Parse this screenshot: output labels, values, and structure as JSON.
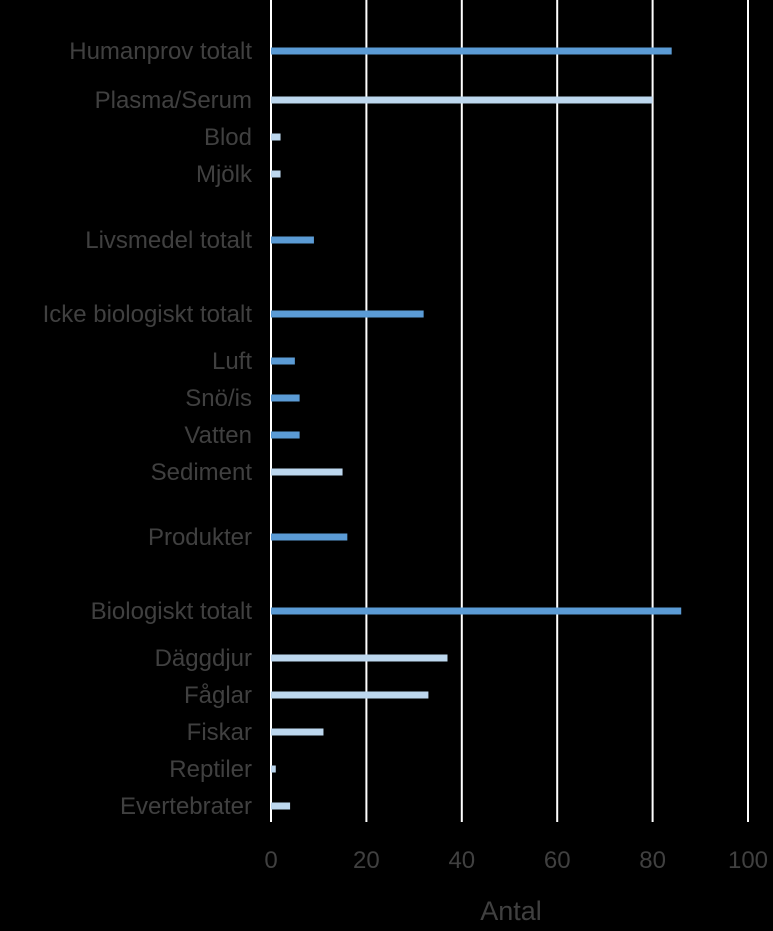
{
  "chart_data": {
    "type": "bar",
    "orientation": "horizontal",
    "xlabel": "Antal",
    "ylabel": "",
    "xlim": [
      0,
      100
    ],
    "xticks": [
      0,
      20,
      40,
      60,
      80,
      100
    ],
    "grid": "vertical",
    "legend": "none",
    "colors": {
      "background": "#000000",
      "grid": "#ffffff",
      "text": "#404040",
      "total": "#5b9bd5",
      "sub": "#bdd7ee"
    },
    "categories": [
      {
        "label": "Humanprov totalt",
        "value": 84,
        "kind": "total"
      },
      {
        "label": "Plasma/Serum",
        "value": 80,
        "kind": "sub"
      },
      {
        "label": "Blod",
        "value": 2,
        "kind": "sub"
      },
      {
        "label": "Mjölk",
        "value": 2,
        "kind": "sub"
      },
      {
        "label": "Livsmedel totalt",
        "value": 9,
        "kind": "total"
      },
      {
        "label": "Icke biologiskt totalt",
        "value": 32,
        "kind": "total"
      },
      {
        "label": "Luft",
        "value": 5,
        "kind": "total"
      },
      {
        "label": "Snö/is",
        "value": 6,
        "kind": "total"
      },
      {
        "label": "Vatten",
        "value": 6,
        "kind": "total"
      },
      {
        "label": "Sediment",
        "value": 15,
        "kind": "sub"
      },
      {
        "label": "Produkter",
        "value": 16,
        "kind": "total"
      },
      {
        "label": "Biologiskt totalt",
        "value": 86,
        "kind": "total"
      },
      {
        "label": "Däggdjur",
        "value": 37,
        "kind": "sub"
      },
      {
        "label": "Fåglar",
        "value": 33,
        "kind": "sub"
      },
      {
        "label": "Fiskar",
        "value": 11,
        "kind": "sub"
      },
      {
        "label": "Reptiler",
        "value": 1,
        "kind": "sub"
      },
      {
        "label": "Evertebrater",
        "value": 4,
        "kind": "sub"
      }
    ]
  }
}
